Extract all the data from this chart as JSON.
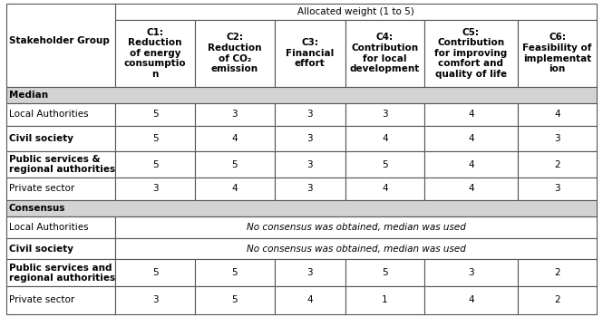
{
  "title": "Allocated weight (1 to 5)",
  "col_header_row1": [
    "C1:\nReduction\nof energy\nconsumptio\nn",
    "C2:\nReduction\nof CO₂\nemission",
    "C3:\nFinancial\neffort",
    "C4:\nContribution\nfor local\ndevelopment",
    "C5:\nContribution\nfor improving\ncomfort and\nquality of life",
    "C6:\nFeasibility of\nimplementat\nion"
  ],
  "row_header_col": "Stakeholder Group",
  "section_headers": [
    "Median",
    "Consensus"
  ],
  "rows": [
    {
      "label": "Local Authorities",
      "values": [
        "5",
        "3",
        "3",
        "3",
        "4",
        "4"
      ],
      "section": "Median"
    },
    {
      "label": "Civil society",
      "values": [
        "5",
        "4",
        "3",
        "4",
        "4",
        "3"
      ],
      "section": "Median"
    },
    {
      "label": "Public services &\nregional authorities",
      "values": [
        "5",
        "5",
        "3",
        "5",
        "4",
        "2"
      ],
      "section": "Median"
    },
    {
      "label": "Private sector",
      "values": [
        "3",
        "4",
        "3",
        "4",
        "4",
        "3"
      ],
      "section": "Median"
    },
    {
      "label": "Local Authorities",
      "values": null,
      "span_text": "No consensus was obtained, median was used",
      "section": "Consensus"
    },
    {
      "label": "Civil society",
      "values": null,
      "span_text": "No consensus was obtained, median was used",
      "section": "Consensus"
    },
    {
      "label": "Public services and\nregional authorities",
      "values": [
        "5",
        "5",
        "3",
        "5",
        "3",
        "2"
      ],
      "section": "Consensus"
    },
    {
      "label": "Private sector",
      "values": [
        "3",
        "5",
        "4",
        "1",
        "4",
        "2"
      ],
      "section": "Consensus"
    }
  ],
  "bg_section_header": "#d3d3d3",
  "bg_normal": "#ffffff",
  "border_color": "#555555",
  "text_color": "#000000",
  "font_size": 7.5,
  "header_font_size": 7.5
}
